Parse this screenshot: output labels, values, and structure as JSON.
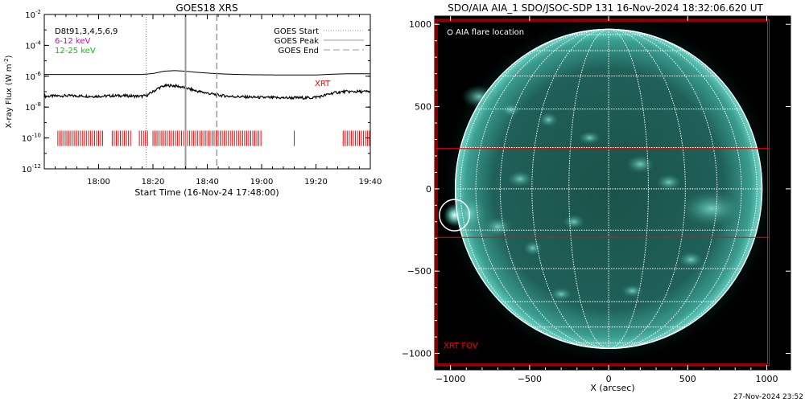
{
  "colors": {
    "xrt": "#ff0000",
    "low_channel": "#cc00cc",
    "high_channel": "#00cc00",
    "sun_base": "#0d3b38",
    "sun_bright": "#67d8c8",
    "grid": "#ffffff"
  },
  "footer": {
    "timestamp": "27-Nov-2024 23:52"
  },
  "chart_data": [
    {
      "type": "line",
      "title": "GOES18 XRS",
      "xlabel": "Start Time (16-Nov-24 17:48:00)",
      "ylabel": "X-ray Flux (W m",
      "ylabel_sup": "-2",
      "ylabel_close": ")",
      "y_scale": "log",
      "xlim_minutes": [
        -8,
        112
      ],
      "ylim": [
        1e-12,
        0.01
      ],
      "x_ticks": [
        {
          "minute": 12,
          "label": "18:00"
        },
        {
          "minute": 32,
          "label": "18:20"
        },
        {
          "minute": 52,
          "label": "18:40"
        },
        {
          "minute": 72,
          "label": "19:00"
        },
        {
          "minute": 92,
          "label": "19:20"
        },
        {
          "minute": 112,
          "label": "19:40"
        }
      ],
      "y_ticks": [
        {
          "value": 0.01,
          "base": "10",
          "exp": "-2"
        },
        {
          "value": 0.0001,
          "base": "10",
          "exp": "-4"
        },
        {
          "value": 1e-06,
          "base": "10",
          "exp": "-6"
        },
        {
          "value": 1e-08,
          "base": "10",
          "exp": "-8"
        },
        {
          "value": 1e-10,
          "base": "10",
          "exp": "-10"
        },
        {
          "value": 1e-12,
          "base": "10",
          "exp": "-12"
        }
      ],
      "legend_left": {
        "position": "top-left",
        "entries": [
          {
            "text": "D8t91,3,4,5,6,9",
            "color": "#000000"
          },
          {
            "text": "6-12 keV",
            "color": "#cc00cc"
          },
          {
            "text": "12-25 keV",
            "color": "#00cc00"
          }
        ]
      },
      "legend_right": {
        "position": "top-right",
        "entries": [
          {
            "text": "GOES Start",
            "style": "dotted"
          },
          {
            "text": "GOES Peak",
            "style": "solid"
          },
          {
            "text": "GOES End",
            "style": "dashed"
          }
        ]
      },
      "markers": {
        "goes_start_minute": 29.5,
        "goes_peak_minute": 44,
        "goes_end_minute": 55.5
      },
      "xrt_label": "XRT",
      "series": [
        {
          "x": [
            -8,
            0,
            10,
            20,
            28,
            32,
            36,
            40,
            44,
            48,
            52,
            56,
            60,
            68,
            76,
            84,
            92,
            98,
            104,
            112
          ],
          "y": [
            1.3e-06,
            1.3e-06,
            1.3e-06,
            1.3e-06,
            1.3e-06,
            1.5e-06,
            2.1e-06,
            2.3e-06,
            2.1e-06,
            1.8e-06,
            1.6e-06,
            1.45e-06,
            1.35e-06,
            1.25e-06,
            1.22e-06,
            1.2e-06,
            1.2e-06,
            1.35e-06,
            1.45e-06,
            1.45e-06
          ]
        },
        {
          "x": [
            -8,
            0,
            10,
            20,
            28,
            30,
            32,
            34,
            36,
            38,
            40,
            42,
            44,
            46,
            48,
            52,
            56,
            60,
            66,
            72,
            78,
            84,
            90,
            94,
            98,
            102,
            106,
            112
          ],
          "y": [
            5e-08,
            5.5e-08,
            5e-08,
            5.5e-08,
            5e-08,
            6e-08,
            1e-07,
            1.7e-07,
            2.3e-07,
            2.5e-07,
            2.4e-07,
            2.1e-07,
            1.8e-07,
            1.4e-07,
            1.1e-07,
            8e-08,
            6e-08,
            5e-08,
            4.5e-08,
            4.2e-08,
            4e-08,
            4e-08,
            4e-08,
            5e-08,
            8e-08,
            1e-07,
            1e-07,
            1e-07
          ]
        }
      ],
      "xrt_coverage_minutes": [
        [
          -3,
          14
        ],
        [
          17,
          24
        ],
        [
          27,
          30
        ],
        [
          32,
          72
        ],
        [
          84,
          84
        ],
        [
          102,
          112
        ]
      ]
    },
    {
      "type": "scatter",
      "title": "SDO/AIA AIA_1 SDO/JSOC-SDP 131 16-Nov-2024 18:32:06.620 UT",
      "xlabel": "X (arcsec)",
      "ylabel": "",
      "xlim": [
        -1100,
        1150
      ],
      "ylim": [
        -1100,
        1050
      ],
      "x_ticks": [
        -1000,
        -500,
        0,
        500,
        1000
      ],
      "y_ticks": [
        1000,
        500,
        0,
        -500,
        -1000
      ],
      "legend_label": "AIA flare location",
      "legend_position": "top-left",
      "fov_label": "XRT FOV",
      "fov_box": {
        "x": [
          -1095,
          1015
        ],
        "y": [
          -1075,
          1030
        ]
      },
      "slit_box": {
        "y": [
          -295,
          245
        ]
      },
      "flare_location": {
        "x": -975,
        "y": -160,
        "r": 95
      },
      "solar_radius_arcsec": 970
    }
  ]
}
